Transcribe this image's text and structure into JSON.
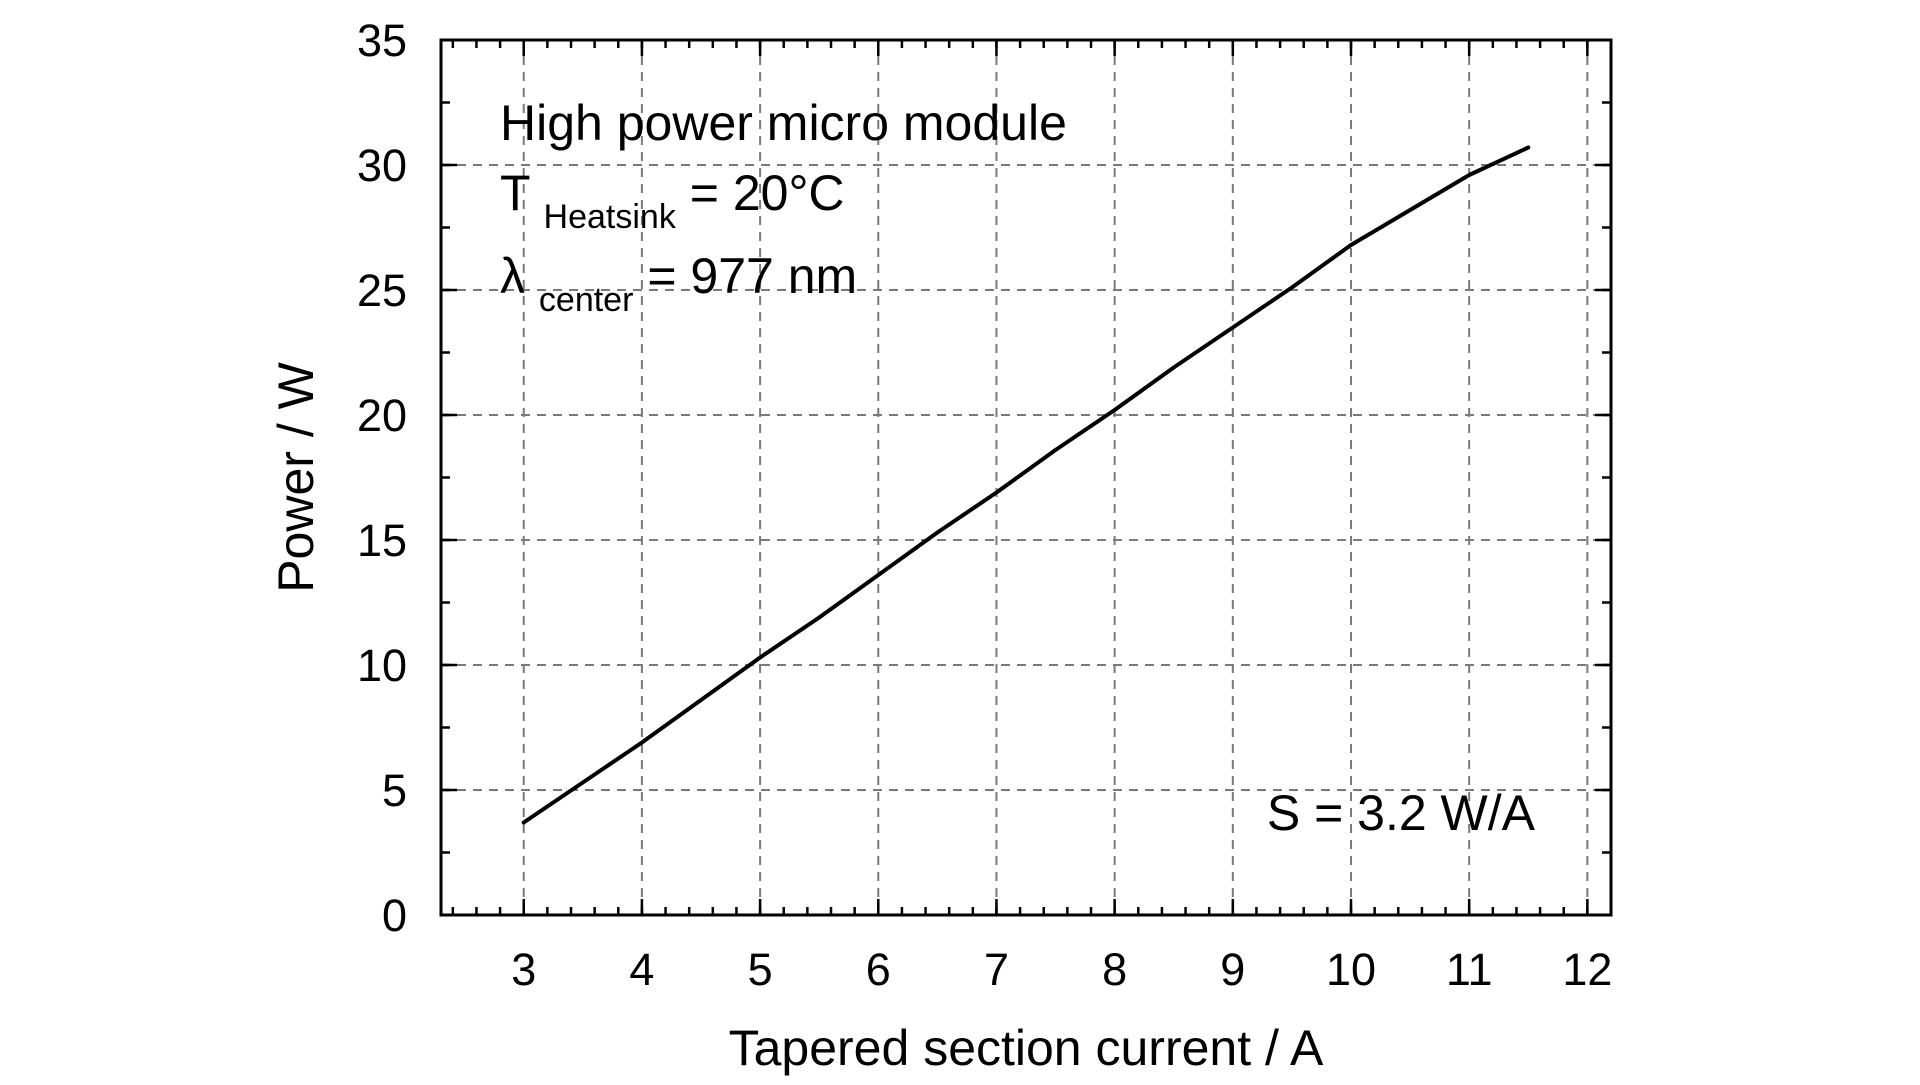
{
  "chart_data": {
    "type": "line",
    "title": "",
    "xlabel": "Tapered section current / A",
    "ylabel": "Power / W",
    "xlim": [
      2.3,
      12.2
    ],
    "ylim": [
      0,
      35
    ],
    "x_ticks": [
      3,
      4,
      5,
      6,
      7,
      8,
      9,
      10,
      11,
      12
    ],
    "x_tick_labels": [
      "3",
      "4",
      "5",
      "6",
      "7",
      "8",
      "9",
      "10",
      "11",
      "12"
    ],
    "y_ticks": [
      0,
      5,
      10,
      15,
      20,
      25,
      30,
      35
    ],
    "y_tick_labels": [
      "0",
      "5",
      "10",
      "15",
      "20",
      "25",
      "30",
      "35"
    ],
    "x_minor_step": 0.2,
    "y_minor_step": 2.5,
    "grid": true,
    "legend": "none",
    "series": [
      {
        "x": [
          3.0,
          3.5,
          4.0,
          4.5,
          5.0,
          5.5,
          6.0,
          6.5,
          7.0,
          7.5,
          8.0,
          8.5,
          9.0,
          9.5,
          10.0,
          10.5,
          11.0,
          11.5
        ],
        "y": [
          3.7,
          5.3,
          6.9,
          8.6,
          10.3,
          11.9,
          13.6,
          15.3,
          16.9,
          18.6,
          20.2,
          21.9,
          23.5,
          25.1,
          26.8,
          28.2,
          29.6,
          30.7
        ],
        "color": "#000000"
      }
    ],
    "annotations": [
      {
        "id": "module",
        "text": "High power micro module"
      },
      {
        "id": "heatsink",
        "main": "T",
        "sub": "Heatsink",
        "rest": " = 20°C"
      },
      {
        "id": "lambda",
        "main": "λ",
        "sub": "center",
        "rest": " = 977 nm"
      },
      {
        "id": "slope",
        "text": "S = 3.2 W/A"
      }
    ]
  }
}
